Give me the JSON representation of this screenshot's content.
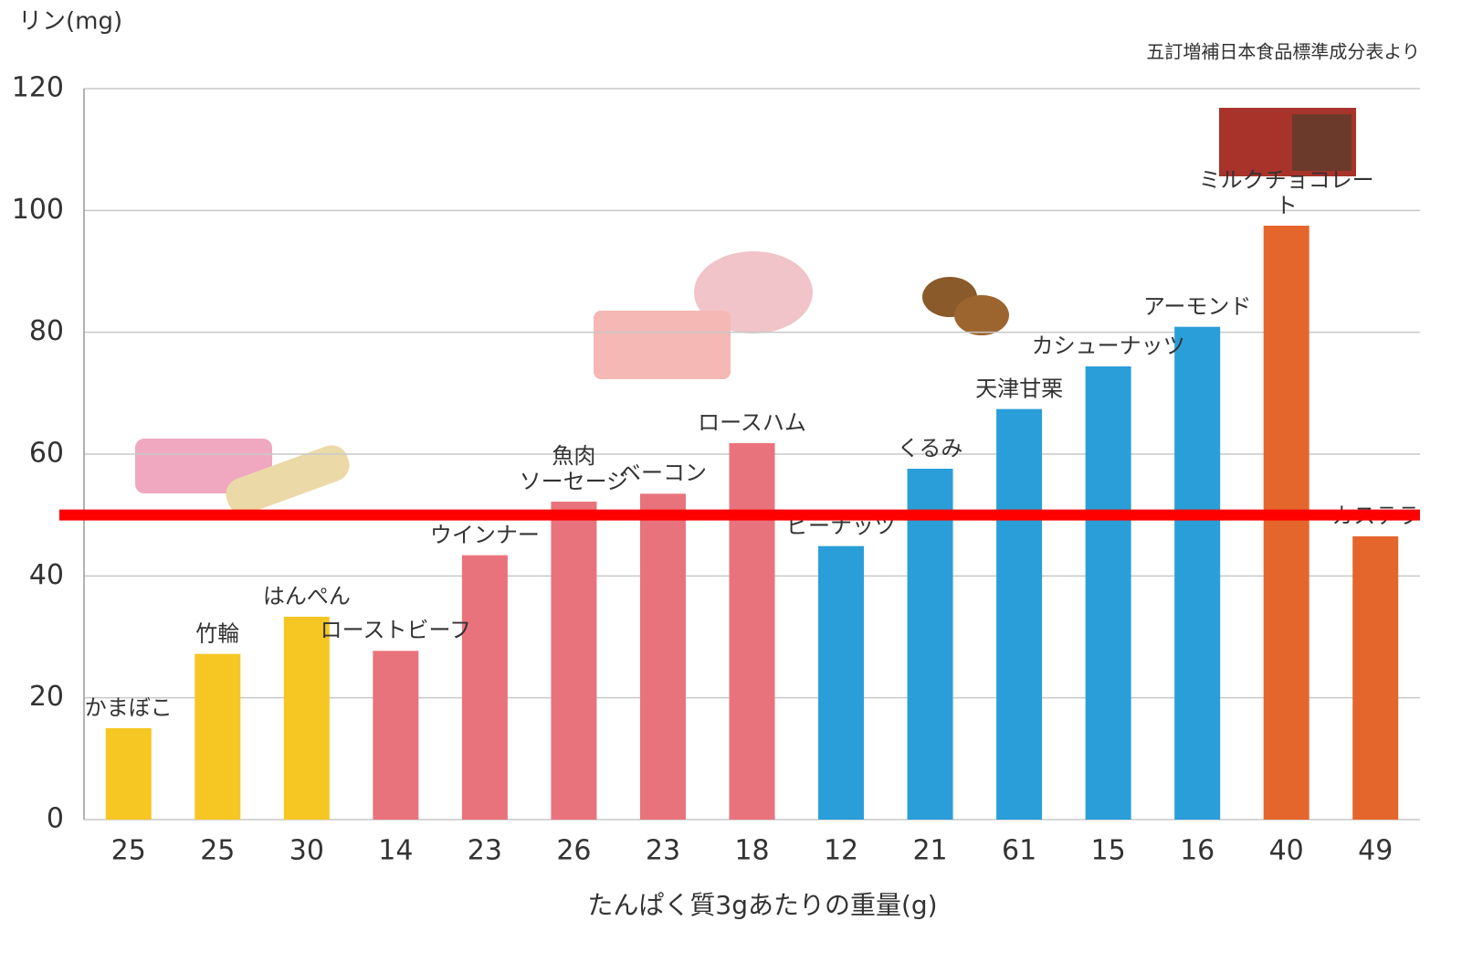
{
  "chart_data": {
    "type": "bar",
    "y_label": "リン(mg)",
    "source": "五訂増補日本食品標準成分表より",
    "x_label": "たんぱく質3gあたりの重量(g)",
    "categories": [
      "25",
      "25",
      "30",
      "14",
      "23",
      "26",
      "23",
      "18",
      "12",
      "21",
      "61",
      "15",
      "16",
      "40",
      "49"
    ],
    "labels": [
      "かまぼこ",
      "竹輪",
      "はんぺん",
      "ローストビーフ",
      "ウインナー",
      "魚肉\nソーセージ",
      "ベーコン",
      "ロースハム",
      "ピーナッツ",
      "くるみ",
      "天津甘栗",
      "カシューナッツ",
      "アーモンド",
      "ミルクチョコレート",
      "カステラ"
    ],
    "values": [
      15,
      27.2,
      33.3,
      27.7,
      43.4,
      52.2,
      53.5,
      61.8,
      44.9,
      57.6,
      67.4,
      74.4,
      80.9,
      97.5,
      46.5
    ],
    "colors": [
      "#f6c623",
      "#f6c623",
      "#f6c623",
      "#e9737c",
      "#e9737c",
      "#e9737c",
      "#e9737c",
      "#e9737c",
      "#2a9ed8",
      "#2a9ed8",
      "#2a9ed8",
      "#2a9ed8",
      "#2a9ed8",
      "#e4662c",
      "#e4662c"
    ],
    "ylim": [
      0,
      120
    ],
    "yticks": [
      0,
      20,
      40,
      60,
      80,
      100,
      120
    ],
    "grid": true,
    "reference_line": {
      "value": 50,
      "color": "#ff0000"
    }
  }
}
